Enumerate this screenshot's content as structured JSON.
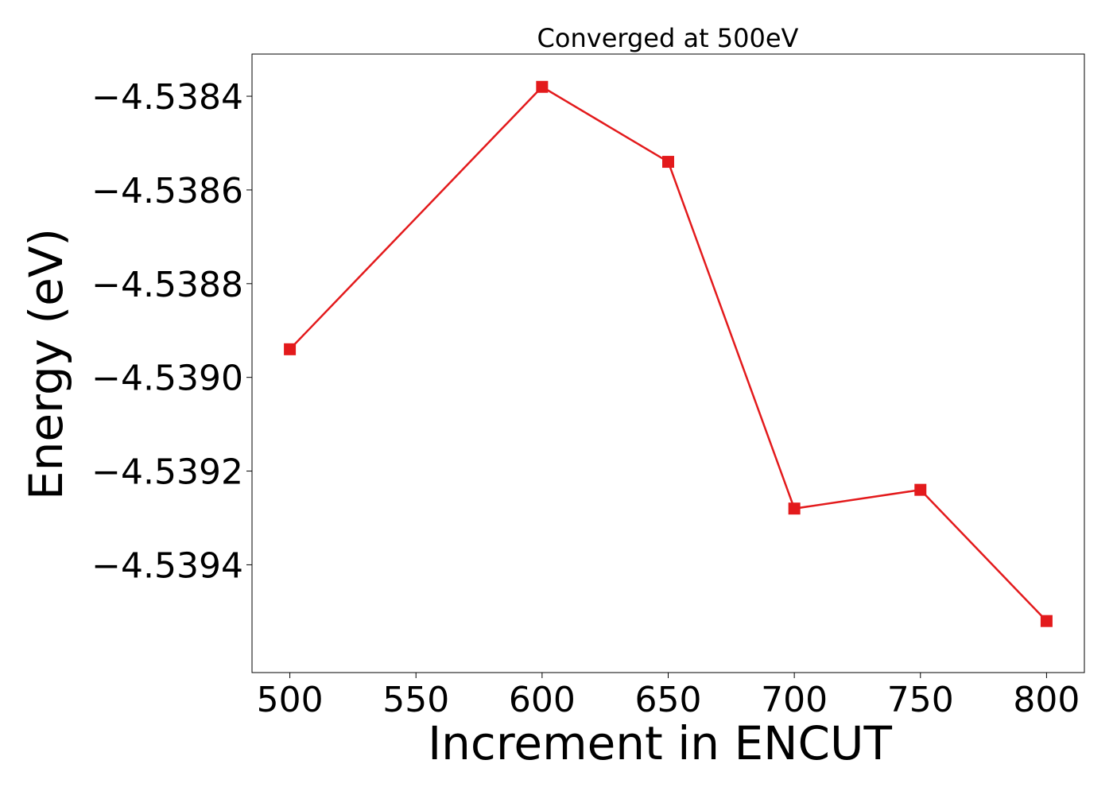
{
  "chart_data": {
    "type": "line",
    "title": "Converged at 500eV",
    "xlabel": "Increment in ENCUT",
    "ylabel": "Energy (eV)",
    "x": [
      500,
      600,
      650,
      700,
      750,
      800
    ],
    "series": [
      {
        "values": [
          -4.53894,
          -4.53838,
          -4.53854,
          -4.53928,
          -4.53924,
          -4.53952
        ],
        "color": "#e31a1c",
        "marker": "square"
      }
    ],
    "xticks": [
      500,
      550,
      600,
      650,
      700,
      750,
      800
    ],
    "xtick_labels": [
      "500",
      "550",
      "600",
      "650",
      "700",
      "750",
      "800"
    ],
    "yticks": [
      -4.5384,
      -4.5386,
      -4.5388,
      -4.539,
      -4.5392,
      -4.5394
    ],
    "ytick_labels": [
      "−4.5384",
      "−4.5386",
      "−4.5388",
      "−4.5390",
      "−4.5392",
      "−4.5394"
    ],
    "xlim": [
      485,
      815
    ],
    "ylim": [
      -4.53963,
      -4.53831
    ],
    "grid": false,
    "legend": "none"
  }
}
